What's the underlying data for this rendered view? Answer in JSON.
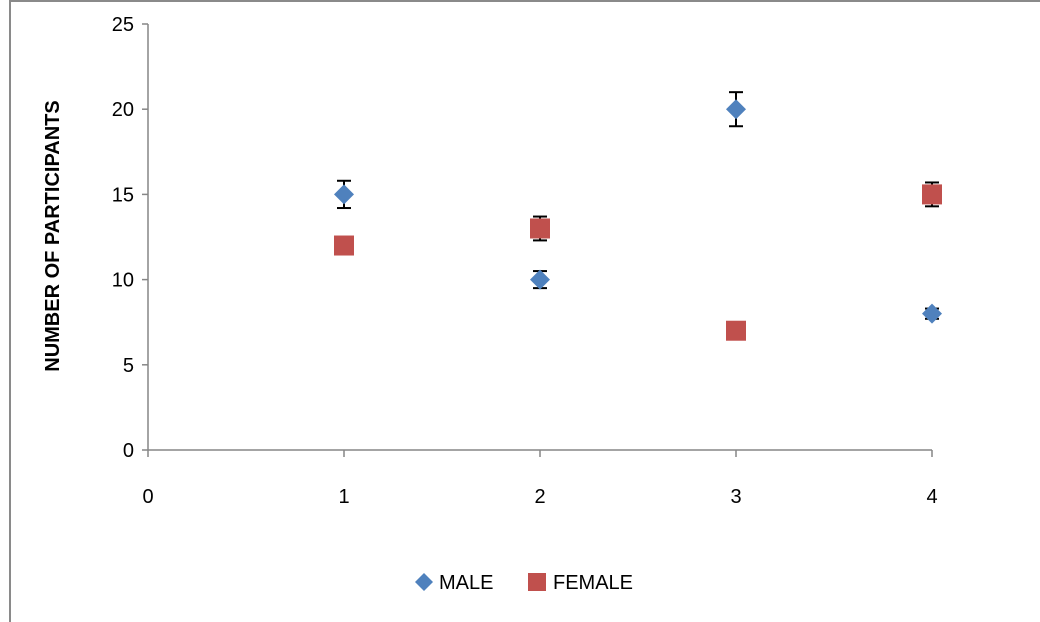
{
  "chart_data": {
    "type": "scatter",
    "title": "",
    "xlabel": "",
    "ylabel": "NUMBER OF PARTICIPANTS",
    "xlim": [
      0,
      4
    ],
    "ylim": [
      0,
      25
    ],
    "xticks": [
      "0",
      "1",
      "2",
      "3",
      "4"
    ],
    "yticks": [
      "0",
      "5",
      "10",
      "15",
      "20",
      "25"
    ],
    "grid": false,
    "legend_position": "bottom",
    "series": [
      {
        "name": "MALE",
        "marker": "diamond",
        "color": "#4f81bd",
        "points": [
          {
            "x": 1,
            "y": 15,
            "err": 0.8
          },
          {
            "x": 2,
            "y": 10,
            "err": 0.5
          },
          {
            "x": 3,
            "y": 20,
            "err": 1.0
          },
          {
            "x": 4,
            "y": 8,
            "err": 0.3
          }
        ]
      },
      {
        "name": "FEMALE",
        "marker": "square",
        "color": "#c0504d",
        "points": [
          {
            "x": 1,
            "y": 12,
            "err": 0.3
          },
          {
            "x": 2,
            "y": 13,
            "err": 0.7
          },
          {
            "x": 3,
            "y": 7,
            "err": 0
          },
          {
            "x": 4,
            "y": 15,
            "err": 0.7
          }
        ]
      }
    ]
  }
}
